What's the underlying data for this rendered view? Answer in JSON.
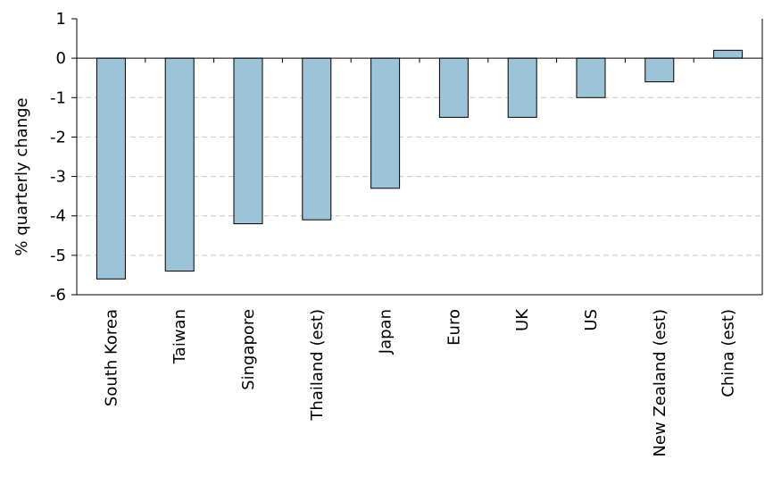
{
  "chart_data": {
    "type": "bar",
    "categories": [
      "South Korea",
      "Taiwan",
      "Singapore",
      "Thailand (est)",
      "Japan",
      "Euro",
      "UK",
      "US",
      "New Zealand (est)",
      "China (est)"
    ],
    "values": [
      -5.6,
      -5.4,
      -4.2,
      -4.1,
      -3.3,
      -1.5,
      -1.5,
      -1.0,
      -0.6,
      0.2
    ],
    "ylabel": "% quarterly change",
    "ylim": [
      -6,
      1
    ],
    "yticks": [
      1,
      0,
      -1,
      -2,
      -3,
      -4,
      -5,
      -6
    ],
    "grid": true,
    "bar_color": "#9dc3d9",
    "bar_edge_color": "#000000",
    "grid_color": "#c8c8c8"
  }
}
